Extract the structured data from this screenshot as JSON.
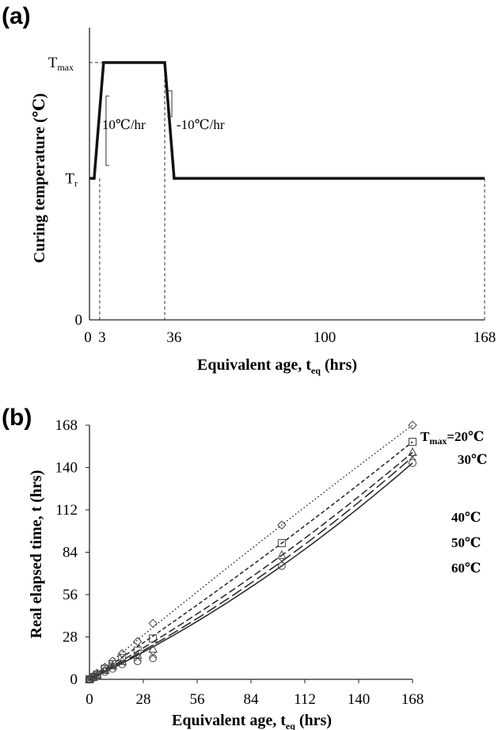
{
  "chart_data": [
    {
      "panel": "(a)",
      "type": "line",
      "xlabel_main": "Equivalent age, t",
      "xlabel_sub": "eq",
      "xlabel_unit": " (hrs)",
      "ylabel": "Curing temperature (℃)",
      "x_ticks": [
        "0",
        "3",
        "36",
        "100",
        "168"
      ],
      "y_ticks": [
        {
          "label": "0",
          "value": 0
        },
        {
          "label": "T",
          "sub": "r",
          "value": 0.55
        },
        {
          "label": "T",
          "sub": "max",
          "value": 1.0
        }
      ],
      "xlim": [
        0,
        168
      ],
      "ylim": [
        0,
        1.1
      ],
      "series": [
        {
          "x": [
            0,
            2,
            6,
            32,
            36,
            168
          ],
          "y": [
            0.55,
            0.55,
            1.0,
            1.0,
            0.55,
            0.55
          ]
        }
      ],
      "ramp_up_label": "10℃/hr",
      "ramp_down_label": "-10℃/hr"
    },
    {
      "panel": "(b)",
      "type": "scatter",
      "xlabel_main": "Equivalent age, t",
      "xlabel_sub": "eq",
      "xlabel_unit": " (hrs)",
      "ylabel": "Real elapsed time, t  (hrs)",
      "x_ticks": [
        0,
        28,
        56,
        84,
        112,
        140,
        168
      ],
      "y_ticks": [
        0,
        28,
        56,
        84,
        112,
        140,
        168
      ],
      "xlim": [
        0,
        168
      ],
      "ylim": [
        0,
        168
      ],
      "series": [
        {
          "label_main": "T",
          "label_sub": "max",
          "label_rest": "=20℃",
          "marker": "diamond",
          "line": "dotted",
          "x": [
            0,
            2,
            4,
            8,
            12,
            17,
            25,
            33,
            100,
            168
          ],
          "y": [
            0,
            2,
            4,
            8,
            12,
            17,
            25,
            37,
            102,
            168
          ]
        },
        {
          "label": "30℃",
          "marker": "square",
          "line": "short-dash",
          "x": [
            0,
            2,
            4,
            8,
            12,
            17,
            25,
            33,
            100,
            168
          ],
          "y": [
            0,
            1.6,
            3.2,
            7,
            10,
            14,
            19,
            27,
            90,
            157
          ]
        },
        {
          "label": "40℃",
          "marker": "triangle",
          "line": "dash",
          "x": [
            0,
            2,
            4,
            8,
            12,
            17,
            25,
            33,
            100,
            168
          ],
          "y": [
            0,
            1.4,
            2.8,
            6,
            9,
            12,
            16,
            20,
            82,
            150
          ]
        },
        {
          "label": "50℃",
          "marker": "x",
          "line": "long-dash",
          "x": [
            0,
            2,
            4,
            8,
            12,
            17,
            25,
            33,
            100,
            168
          ],
          "y": [
            0,
            1.2,
            2.5,
            5.5,
            8,
            11,
            14,
            16,
            78,
            147
          ]
        },
        {
          "label": "60℃",
          "marker": "circle",
          "line": "solid",
          "x": [
            0,
            2,
            4,
            8,
            12,
            17,
            25,
            33,
            100,
            168
          ],
          "y": [
            0,
            1,
            2.2,
            5,
            7,
            10,
            12,
            14,
            75,
            143
          ]
        }
      ]
    }
  ]
}
